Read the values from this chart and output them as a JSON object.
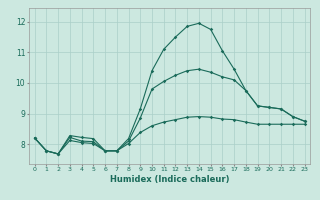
{
  "xlabel": "Humidex (Indice chaleur)",
  "xlim": [
    -0.5,
    23.5
  ],
  "ylim": [
    7.35,
    12.45
  ],
  "yticks": [
    8,
    9,
    10,
    11,
    12
  ],
  "xticks": [
    0,
    1,
    2,
    3,
    4,
    5,
    6,
    7,
    8,
    9,
    10,
    11,
    12,
    13,
    14,
    15,
    16,
    17,
    18,
    19,
    20,
    21,
    22,
    23
  ],
  "bg_color": "#cce8e0",
  "grid_color": "#aacfc8",
  "line_color": "#1a6b5a",
  "line1_x": [
    0,
    1,
    2,
    3,
    4,
    5,
    6,
    7,
    8,
    9,
    10,
    11,
    12,
    13,
    14,
    15,
    16,
    17,
    18,
    19,
    20,
    21,
    22,
    23
  ],
  "line1_y": [
    8.2,
    7.78,
    7.68,
    8.28,
    8.22,
    8.18,
    7.78,
    7.78,
    8.18,
    9.15,
    10.4,
    11.1,
    11.5,
    11.85,
    11.95,
    11.75,
    11.05,
    10.45,
    9.75,
    9.25,
    9.2,
    9.15,
    8.9,
    8.75
  ],
  "line2_x": [
    0,
    1,
    2,
    3,
    4,
    5,
    6,
    7,
    8,
    9,
    10,
    11,
    12,
    13,
    14,
    15,
    16,
    17,
    18,
    19,
    20,
    21,
    22,
    23
  ],
  "line2_y": [
    8.2,
    7.78,
    7.68,
    8.22,
    8.1,
    8.08,
    7.78,
    7.78,
    8.1,
    8.85,
    9.8,
    10.05,
    10.25,
    10.4,
    10.45,
    10.35,
    10.2,
    10.1,
    9.75,
    9.25,
    9.2,
    9.15,
    8.9,
    8.75
  ],
  "line3_x": [
    0,
    1,
    2,
    3,
    4,
    5,
    6,
    7,
    8,
    9,
    10,
    11,
    12,
    13,
    14,
    15,
    16,
    17,
    18,
    19,
    20,
    21,
    22,
    23
  ],
  "line3_y": [
    8.2,
    7.78,
    7.68,
    8.12,
    8.05,
    8.02,
    7.78,
    7.78,
    8.02,
    8.38,
    8.6,
    8.72,
    8.8,
    8.88,
    8.9,
    8.88,
    8.82,
    8.8,
    8.72,
    8.65,
    8.65,
    8.65,
    8.65,
    8.65
  ]
}
